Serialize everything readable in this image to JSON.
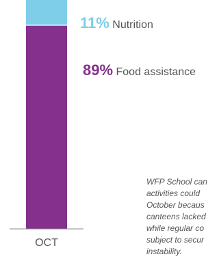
{
  "chart_data": {
    "type": "bar",
    "stacked": true,
    "categories": [
      "OCT"
    ],
    "series": [
      {
        "name": "Food assistance",
        "values": [
          89
        ],
        "color": "#84308c"
      },
      {
        "name": "Nutrition",
        "values": [
          11
        ],
        "color": "#7ecde9"
      }
    ],
    "ylim": [
      0,
      100
    ],
    "labels": [
      {
        "value": "11%",
        "text": "Nutrition"
      },
      {
        "value": "89%",
        "text": "Food assistance"
      }
    ],
    "annotation": [
      "WFP School can",
      "activities could",
      "October becaus",
      "canteens lacked",
      "while regular co",
      "subject to secur",
      "instability."
    ]
  },
  "colors": {
    "nutrition_accent": "#7ecde9",
    "food_accent": "#84308c",
    "axis": "#888888"
  }
}
